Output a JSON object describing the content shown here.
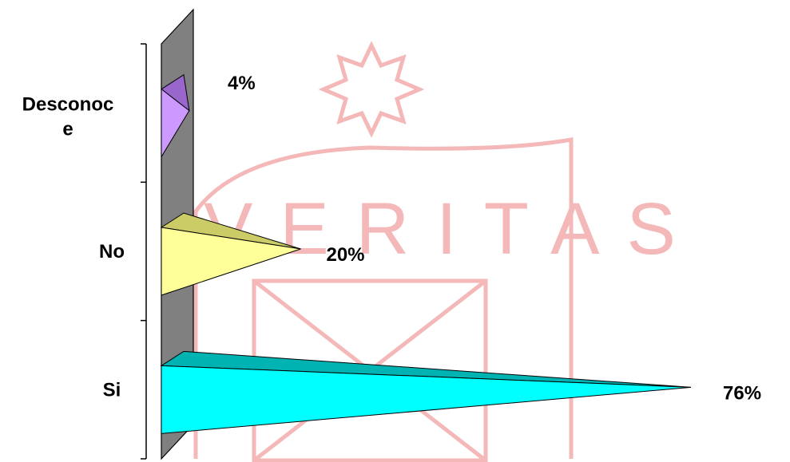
{
  "chart_data": {
    "type": "bar",
    "orientation": "horizontal",
    "bar_shape": "3d-pyramid",
    "categories": [
      "Desconoce",
      "No",
      "Si"
    ],
    "values": [
      4,
      20,
      76
    ],
    "data_labels": [
      "4%",
      "20%",
      "76%"
    ],
    "colors": {
      "Desconoce": "#cc99ff",
      "No": "#ffff99",
      "Si": "#00ffff"
    },
    "side_colors": {
      "Desconoce": "#9966cc",
      "No": "#cccc66",
      "Si": "#00b3b3"
    },
    "wall_color": "#808080",
    "xlim": [
      0,
      76
    ],
    "title": "",
    "xlabel": "",
    "ylabel": "",
    "legend": "none",
    "grid": false
  },
  "watermark": {
    "text": "VERITAS",
    "color": "#f4b8b8"
  }
}
